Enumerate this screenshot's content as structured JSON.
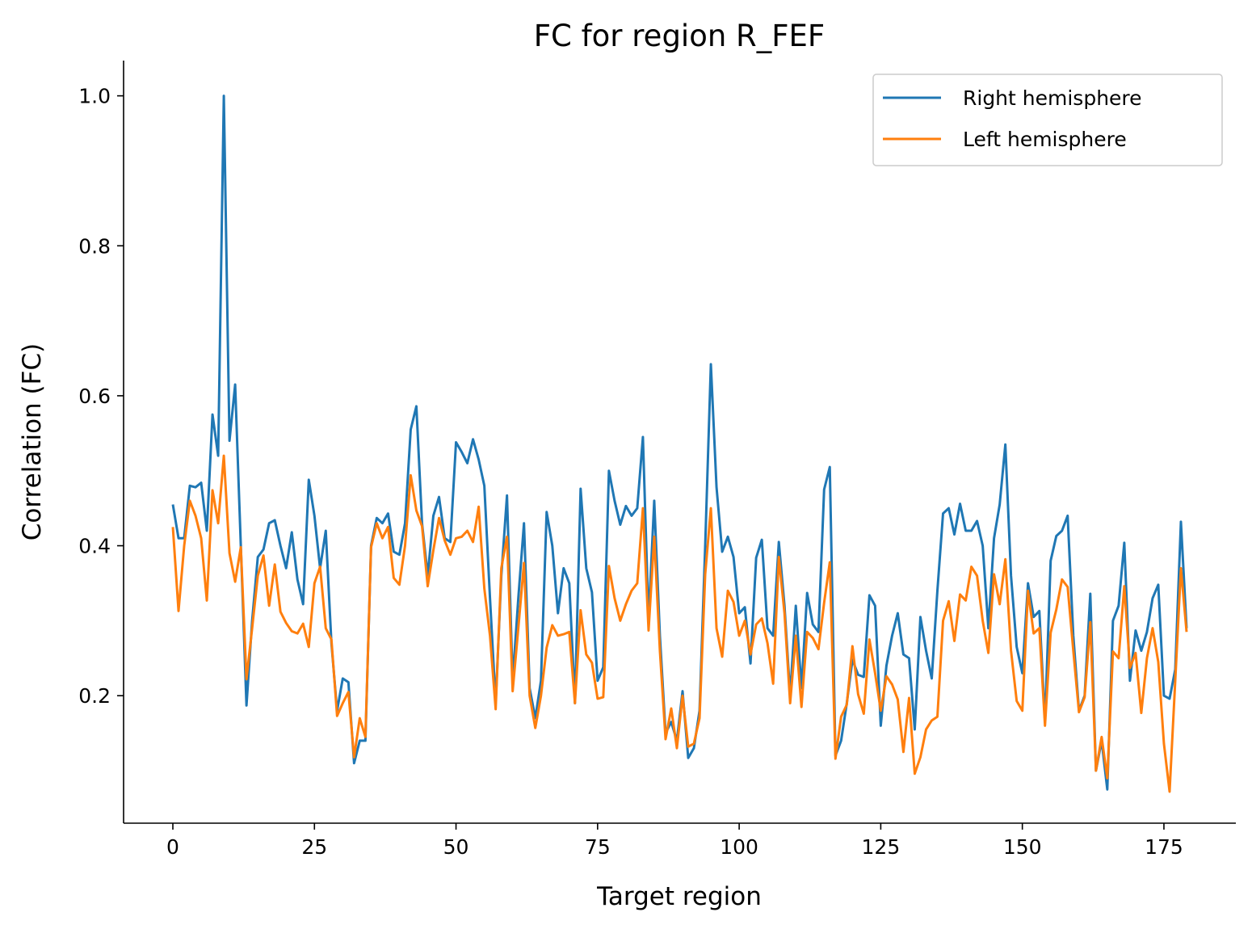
{
  "chart_data": {
    "type": "line",
    "title": "FC for region R_FEF",
    "xlabel": "Target region",
    "ylabel": "Correlation (FC)",
    "xlim": [
      -8.7,
      187.7
    ],
    "ylim": [
      0.03,
      1.047
    ],
    "xticks": [
      0,
      25,
      50,
      75,
      100,
      125,
      150,
      175
    ],
    "yticks": [
      0.2,
      0.4,
      0.6,
      0.8,
      1.0
    ],
    "ytick_labels": [
      "0.2",
      "0.4",
      "0.6",
      "0.8",
      "1.0"
    ],
    "grid": false,
    "legend_position": "top-right",
    "series": [
      {
        "name": "Right hemisphere",
        "color": "#1f77b4",
        "values": [
          0.455,
          0.41,
          0.41,
          0.48,
          0.478,
          0.484,
          0.42,
          0.575,
          0.52,
          1.0,
          0.54,
          0.615,
          0.4,
          0.187,
          0.3,
          0.385,
          0.395,
          0.43,
          0.434,
          0.4,
          0.37,
          0.418,
          0.355,
          0.322,
          0.488,
          0.44,
          0.37,
          0.42,
          0.27,
          0.18,
          0.223,
          0.218,
          0.11,
          0.14,
          0.14,
          0.4,
          0.437,
          0.43,
          0.443,
          0.392,
          0.388,
          0.43,
          0.555,
          0.586,
          0.43,
          0.36,
          0.44,
          0.465,
          0.41,
          0.405,
          0.538,
          0.525,
          0.51,
          0.542,
          0.515,
          0.48,
          0.33,
          0.19,
          0.36,
          0.467,
          0.22,
          0.33,
          0.43,
          0.21,
          0.17,
          0.22,
          0.445,
          0.4,
          0.31,
          0.37,
          0.35,
          0.19,
          0.476,
          0.37,
          0.338,
          0.22,
          0.238,
          0.5,
          0.46,
          0.428,
          0.453,
          0.44,
          0.45,
          0.545,
          0.3,
          0.46,
          0.28,
          0.15,
          0.165,
          0.14,
          0.206,
          0.117,
          0.13,
          0.18,
          0.4,
          0.642,
          0.478,
          0.392,
          0.412,
          0.385,
          0.31,
          0.318,
          0.243,
          0.384,
          0.408,
          0.29,
          0.28,
          0.405,
          0.32,
          0.2,
          0.32,
          0.21,
          0.337,
          0.295,
          0.285,
          0.475,
          0.505,
          0.12,
          0.14,
          0.19,
          0.248,
          0.228,
          0.225,
          0.334,
          0.32,
          0.16,
          0.24,
          0.28,
          0.31,
          0.255,
          0.25,
          0.155,
          0.305,
          0.26,
          0.223,
          0.34,
          0.443,
          0.45,
          0.415,
          0.456,
          0.42,
          0.42,
          0.433,
          0.4,
          0.29,
          0.41,
          0.455,
          0.535,
          0.36,
          0.265,
          0.23,
          0.35,
          0.305,
          0.313,
          0.165,
          0.38,
          0.413,
          0.42,
          0.44,
          0.28,
          0.18,
          0.2,
          0.336,
          0.1,
          0.14,
          0.075,
          0.3,
          0.32,
          0.404,
          0.22,
          0.287,
          0.26,
          0.285,
          0.33,
          0.348,
          0.2,
          0.196,
          0.235,
          0.432,
          0.29
        ]
      },
      {
        "name": "Left hemisphere",
        "color": "#ff7f0e",
        "values": [
          0.425,
          0.313,
          0.4,
          0.46,
          0.44,
          0.41,
          0.327,
          0.474,
          0.43,
          0.52,
          0.39,
          0.352,
          0.398,
          0.222,
          0.29,
          0.36,
          0.387,
          0.32,
          0.375,
          0.312,
          0.297,
          0.286,
          0.283,
          0.296,
          0.265,
          0.35,
          0.372,
          0.29,
          0.275,
          0.173,
          0.19,
          0.205,
          0.118,
          0.17,
          0.145,
          0.398,
          0.43,
          0.41,
          0.425,
          0.357,
          0.348,
          0.4,
          0.494,
          0.447,
          0.426,
          0.346,
          0.394,
          0.437,
          0.407,
          0.388,
          0.41,
          0.412,
          0.42,
          0.405,
          0.452,
          0.343,
          0.28,
          0.182,
          0.37,
          0.412,
          0.206,
          0.29,
          0.377,
          0.2,
          0.157,
          0.2,
          0.264,
          0.294,
          0.28,
          0.282,
          0.285,
          0.19,
          0.314,
          0.255,
          0.244,
          0.196,
          0.198,
          0.373,
          0.33,
          0.3,
          0.322,
          0.34,
          0.35,
          0.45,
          0.287,
          0.412,
          0.26,
          0.142,
          0.183,
          0.13,
          0.2,
          0.132,
          0.136,
          0.17,
          0.362,
          0.45,
          0.29,
          0.252,
          0.34,
          0.325,
          0.28,
          0.3,
          0.255,
          0.295,
          0.303,
          0.27,
          0.216,
          0.385,
          0.31,
          0.19,
          0.28,
          0.185,
          0.285,
          0.277,
          0.262,
          0.324,
          0.378,
          0.116,
          0.172,
          0.188,
          0.266,
          0.202,
          0.176,
          0.275,
          0.23,
          0.18,
          0.226,
          0.215,
          0.195,
          0.125,
          0.197,
          0.096,
          0.118,
          0.155,
          0.167,
          0.172,
          0.3,
          0.326,
          0.273,
          0.335,
          0.327,
          0.372,
          0.36,
          0.3,
          0.257,
          0.362,
          0.322,
          0.382,
          0.26,
          0.193,
          0.18,
          0.34,
          0.283,
          0.29,
          0.16,
          0.284,
          0.315,
          0.355,
          0.345,
          0.26,
          0.178,
          0.198,
          0.298,
          0.1,
          0.145,
          0.09,
          0.259,
          0.25,
          0.346,
          0.237,
          0.257,
          0.177,
          0.25,
          0.29,
          0.245,
          0.136,
          0.072,
          0.22,
          0.37,
          0.285
        ]
      }
    ]
  }
}
